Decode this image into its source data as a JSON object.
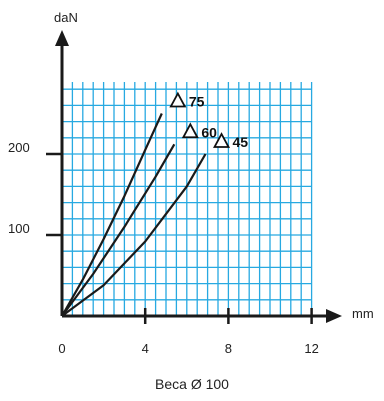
{
  "chart_data": {
    "type": "line",
    "title": "",
    "xlabel": "mm",
    "ylabel": "daN",
    "caption": "Beca Ø 100",
    "xlim": [
      0,
      12
    ],
    "ylim": [
      0,
      310
    ],
    "grid": true,
    "x_ticks": [
      0,
      4,
      8,
      12
    ],
    "x_tick_labels": [
      "0",
      "4",
      "8",
      "12"
    ],
    "y_ticks": [
      100,
      200
    ],
    "y_tick_labels": [
      "100",
      "200"
    ],
    "series": [
      {
        "name": "75",
        "marker": "triangle",
        "x": [
          0,
          1,
          2,
          3,
          4,
          4.8
        ],
        "y": [
          0,
          45,
          95,
          148,
          205,
          250
        ]
      },
      {
        "name": "60",
        "marker": "triangle",
        "x": [
          0,
          1.5,
          3,
          4.5,
          5.4
        ],
        "y": [
          0,
          52,
          110,
          172,
          212
        ]
      },
      {
        "name": "45",
        "marker": "triangle",
        "x": [
          0,
          2,
          4,
          6,
          6.9
        ],
        "y": [
          0,
          38,
          92,
          160,
          200
        ]
      }
    ],
    "colors": {
      "grid": "#27a9e1",
      "axis": "#1a1a1a",
      "line": "#1a1a1a"
    }
  }
}
